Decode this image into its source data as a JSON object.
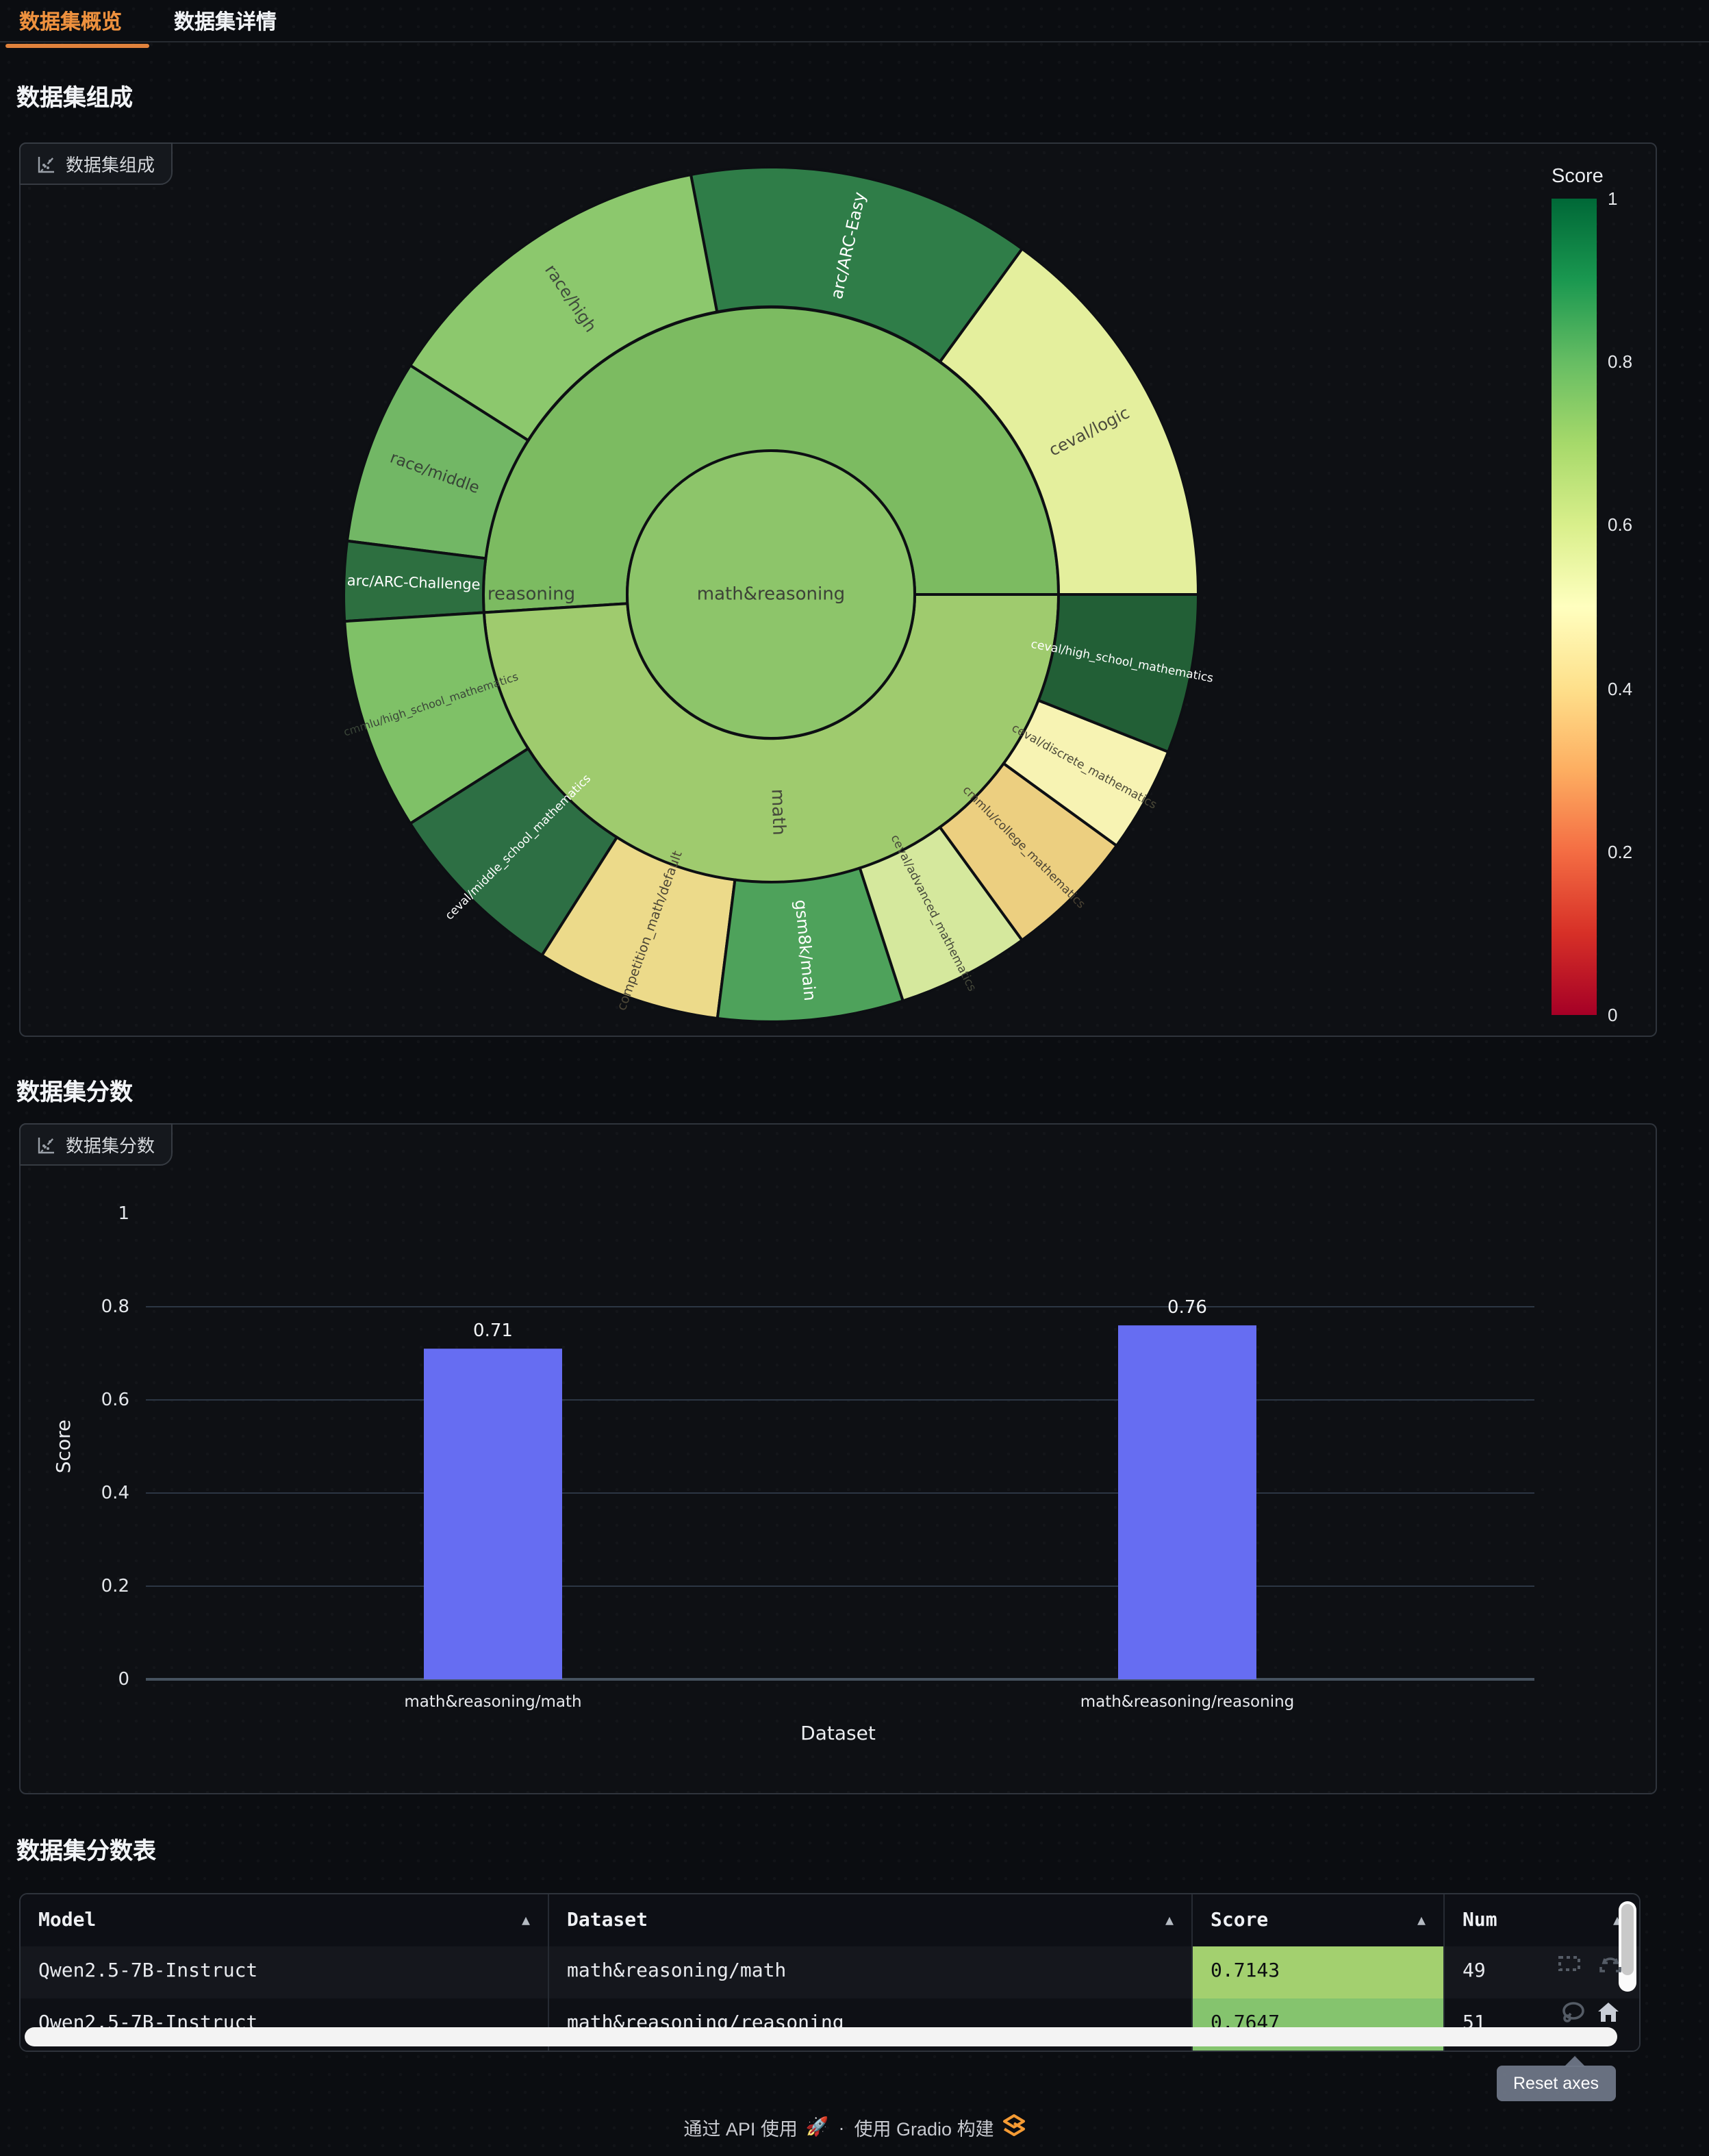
{
  "theme": {
    "accent_orange": "#ee913e",
    "underline_orange": "#e0823c",
    "page_bg": "#0b0d11",
    "panel_bg": "#0e1014",
    "panel_border": "#2f343c"
  },
  "tabs": {
    "items": [
      {
        "label": "数据集概览",
        "active": true
      },
      {
        "label": "数据集详情",
        "active": false
      }
    ]
  },
  "sections": {
    "composition": {
      "title": "数据集组成",
      "panel_label": "数据集组成"
    },
    "scores": {
      "title": "数据集分数",
      "panel_label": "数据集分数"
    },
    "table": {
      "title": "数据集分数表"
    }
  },
  "colorbar": {
    "title": "Score",
    "ticks": [
      "1",
      "0.8",
      "0.6",
      "0.4",
      "0.2",
      "0"
    ],
    "stops": [
      "#006837",
      "#1a9850",
      "#66bd63",
      "#a6d96a",
      "#d9ef8b",
      "#ffffbf",
      "#fee08b",
      "#fdae61",
      "#f46d43",
      "#d73027",
      "#a50026"
    ]
  },
  "chart_data": [
    {
      "type": "sunburst",
      "title": "数据集组成",
      "color_field": "Score",
      "color_range": [
        0,
        1
      ],
      "colorscale": "RdYlGn",
      "center": {
        "label": "math&reasoning",
        "num": 100,
        "color": "#8dc56a",
        "text_color": "#3c4137"
      },
      "ring1": [
        {
          "label": "reasoning",
          "num": 51,
          "score": 0.7647,
          "color": "#7cbb61",
          "text_color": "#394437",
          "orient": "horizontal",
          "label_angle": 180,
          "label_radius": 175
        },
        {
          "label": "math",
          "num": 49,
          "score": 0.7143,
          "color": "#9fcb6e",
          "text_color": "#45493b",
          "orient": "radial",
          "label_radius": 159
        }
      ],
      "ring2": [
        {
          "parent": "reasoning",
          "label": "ceval/logic",
          "num": 15,
          "color": "#e4ef9d",
          "text_color": "#4c4c3c",
          "font": 12
        },
        {
          "parent": "reasoning",
          "label": "arc/ARC-Easy",
          "num": 13,
          "color": "#2f7d48",
          "text_color": "#ffffff",
          "font": 12
        },
        {
          "parent": "reasoning",
          "label": "race/high",
          "num": 13,
          "color": "#8cc86d",
          "text_color": "#3f4a3c",
          "font": 12
        },
        {
          "parent": "reasoning",
          "label": "race/middle",
          "num": 7,
          "color": "#72b765",
          "text_color": "#374436",
          "font": 11.5
        },
        {
          "parent": "reasoning",
          "label": "arc/ARC-Challenge",
          "num": 3,
          "color": "#2d6f40",
          "text_color": "#ffffff",
          "font": 10.5
        },
        {
          "parent": "math",
          "label": "cmmlu/high_school_mathematics",
          "num": 8,
          "color": "#7fc167",
          "text_color": "#3a4538",
          "font": 8
        },
        {
          "parent": "math",
          "label": "ceval/middle_school_mathematics",
          "num": 7,
          "color": "#2d6f44",
          "text_color": "#ffffff",
          "font": 8.5
        },
        {
          "parent": "math",
          "label": "competition_math/default",
          "num": 7,
          "color": "#ecda8a",
          "text_color": "#4c4636",
          "font": 9.5
        },
        {
          "parent": "math",
          "label": "gsm8k/main",
          "num": 7,
          "color": "#4ea25b",
          "text_color": "#ffffff",
          "font": 12
        },
        {
          "parent": "math",
          "label": "ceval/advanced_mathematics",
          "num": 5,
          "color": "#d5e89d",
          "text_color": "#45483a",
          "font": 8.5
        },
        {
          "parent": "math",
          "label": "cmmlu/college_mathematics",
          "num": 5,
          "color": "#eccf80",
          "text_color": "#4c4434",
          "font": 8.5
        },
        {
          "parent": "math",
          "label": "ceval/discrete_mathematics",
          "num": 4,
          "color": "#f7f3b3",
          "text_color": "#4c4a39",
          "font": 8.5
        },
        {
          "parent": "math",
          "label": "ceval/high_school_mathematics",
          "num": 6,
          "color": "#225f36",
          "text_color": "#ffffff",
          "font": 8.5
        }
      ]
    },
    {
      "type": "bar",
      "title": "数据集分数",
      "categories": [
        "math&reasoning/math",
        "math&reasoning/reasoning"
      ],
      "values": [
        0.71,
        0.76
      ],
      "value_labels": [
        "0.71",
        "0.76"
      ],
      "xlabel": "Dataset",
      "ylabel": "Score",
      "ylim": [
        0,
        1.06
      ],
      "yticks": [
        "0",
        "0.2",
        "0.4",
        "0.6",
        "0.8",
        "1"
      ],
      "grid": true,
      "bar_color": "#666df2",
      "modebar": {
        "tooltip": "Reset axes",
        "icons": [
          "box-select-icon",
          "autoscale-icon",
          "lasso-icon",
          "reset-axes-icon"
        ]
      }
    }
  ],
  "table": {
    "headers": [
      {
        "label": "Model",
        "sort_icon": "▲"
      },
      {
        "label": "Dataset",
        "sort_icon": "▲"
      },
      {
        "label": "Score",
        "sort_icon": "▲"
      },
      {
        "label": "Num",
        "sort_icon": "▲"
      }
    ],
    "rows": [
      {
        "model": "Qwen2.5-7B-Instruct",
        "dataset": "math&reasoning/math",
        "score": "0.7143",
        "score_bg": "#a3d06f",
        "score_text": "#0c0e10",
        "num": "49"
      },
      {
        "model": "Qwen2.5-7B-Instruct",
        "dataset": "math&reasoning/reasoning",
        "score": "0.7647",
        "score_bg": "#85c46e",
        "score_text": "#0c0e10",
        "num": "51"
      }
    ]
  },
  "footer": {
    "use_api": "通过 API 使用",
    "rocket": "🚀",
    "separator": "·",
    "built_with": "使用 Gradio 构建"
  }
}
